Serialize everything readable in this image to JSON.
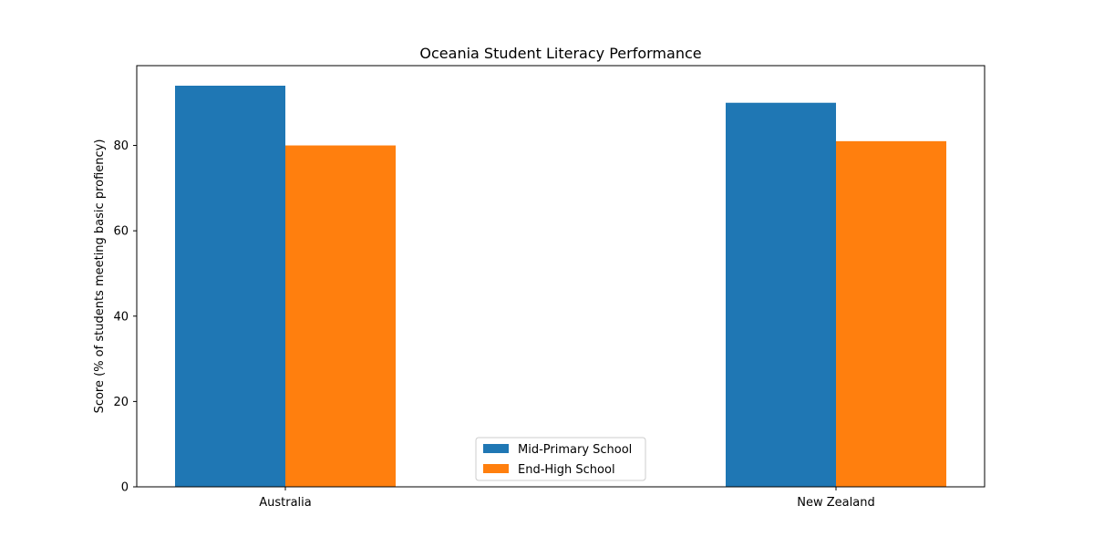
{
  "chart_data": {
    "type": "bar",
    "title": "Oceania Student Literacy Performance",
    "xlabel": "",
    "ylabel": "Score (% of students meeting basic profiency)",
    "categories": [
      "Australia",
      "New Zealand"
    ],
    "series": [
      {
        "name": "Mid-Primary School",
        "values": [
          94,
          90
        ],
        "color": "#1f77b4"
      },
      {
        "name": "End-High School",
        "values": [
          80,
          81
        ],
        "color": "#ff7f0e"
      }
    ],
    "ylim": [
      0,
      98.7
    ],
    "yticks": [
      "0",
      "20",
      "40",
      "60",
      "80"
    ],
    "grid": false,
    "legend_position": "bottom-center"
  }
}
